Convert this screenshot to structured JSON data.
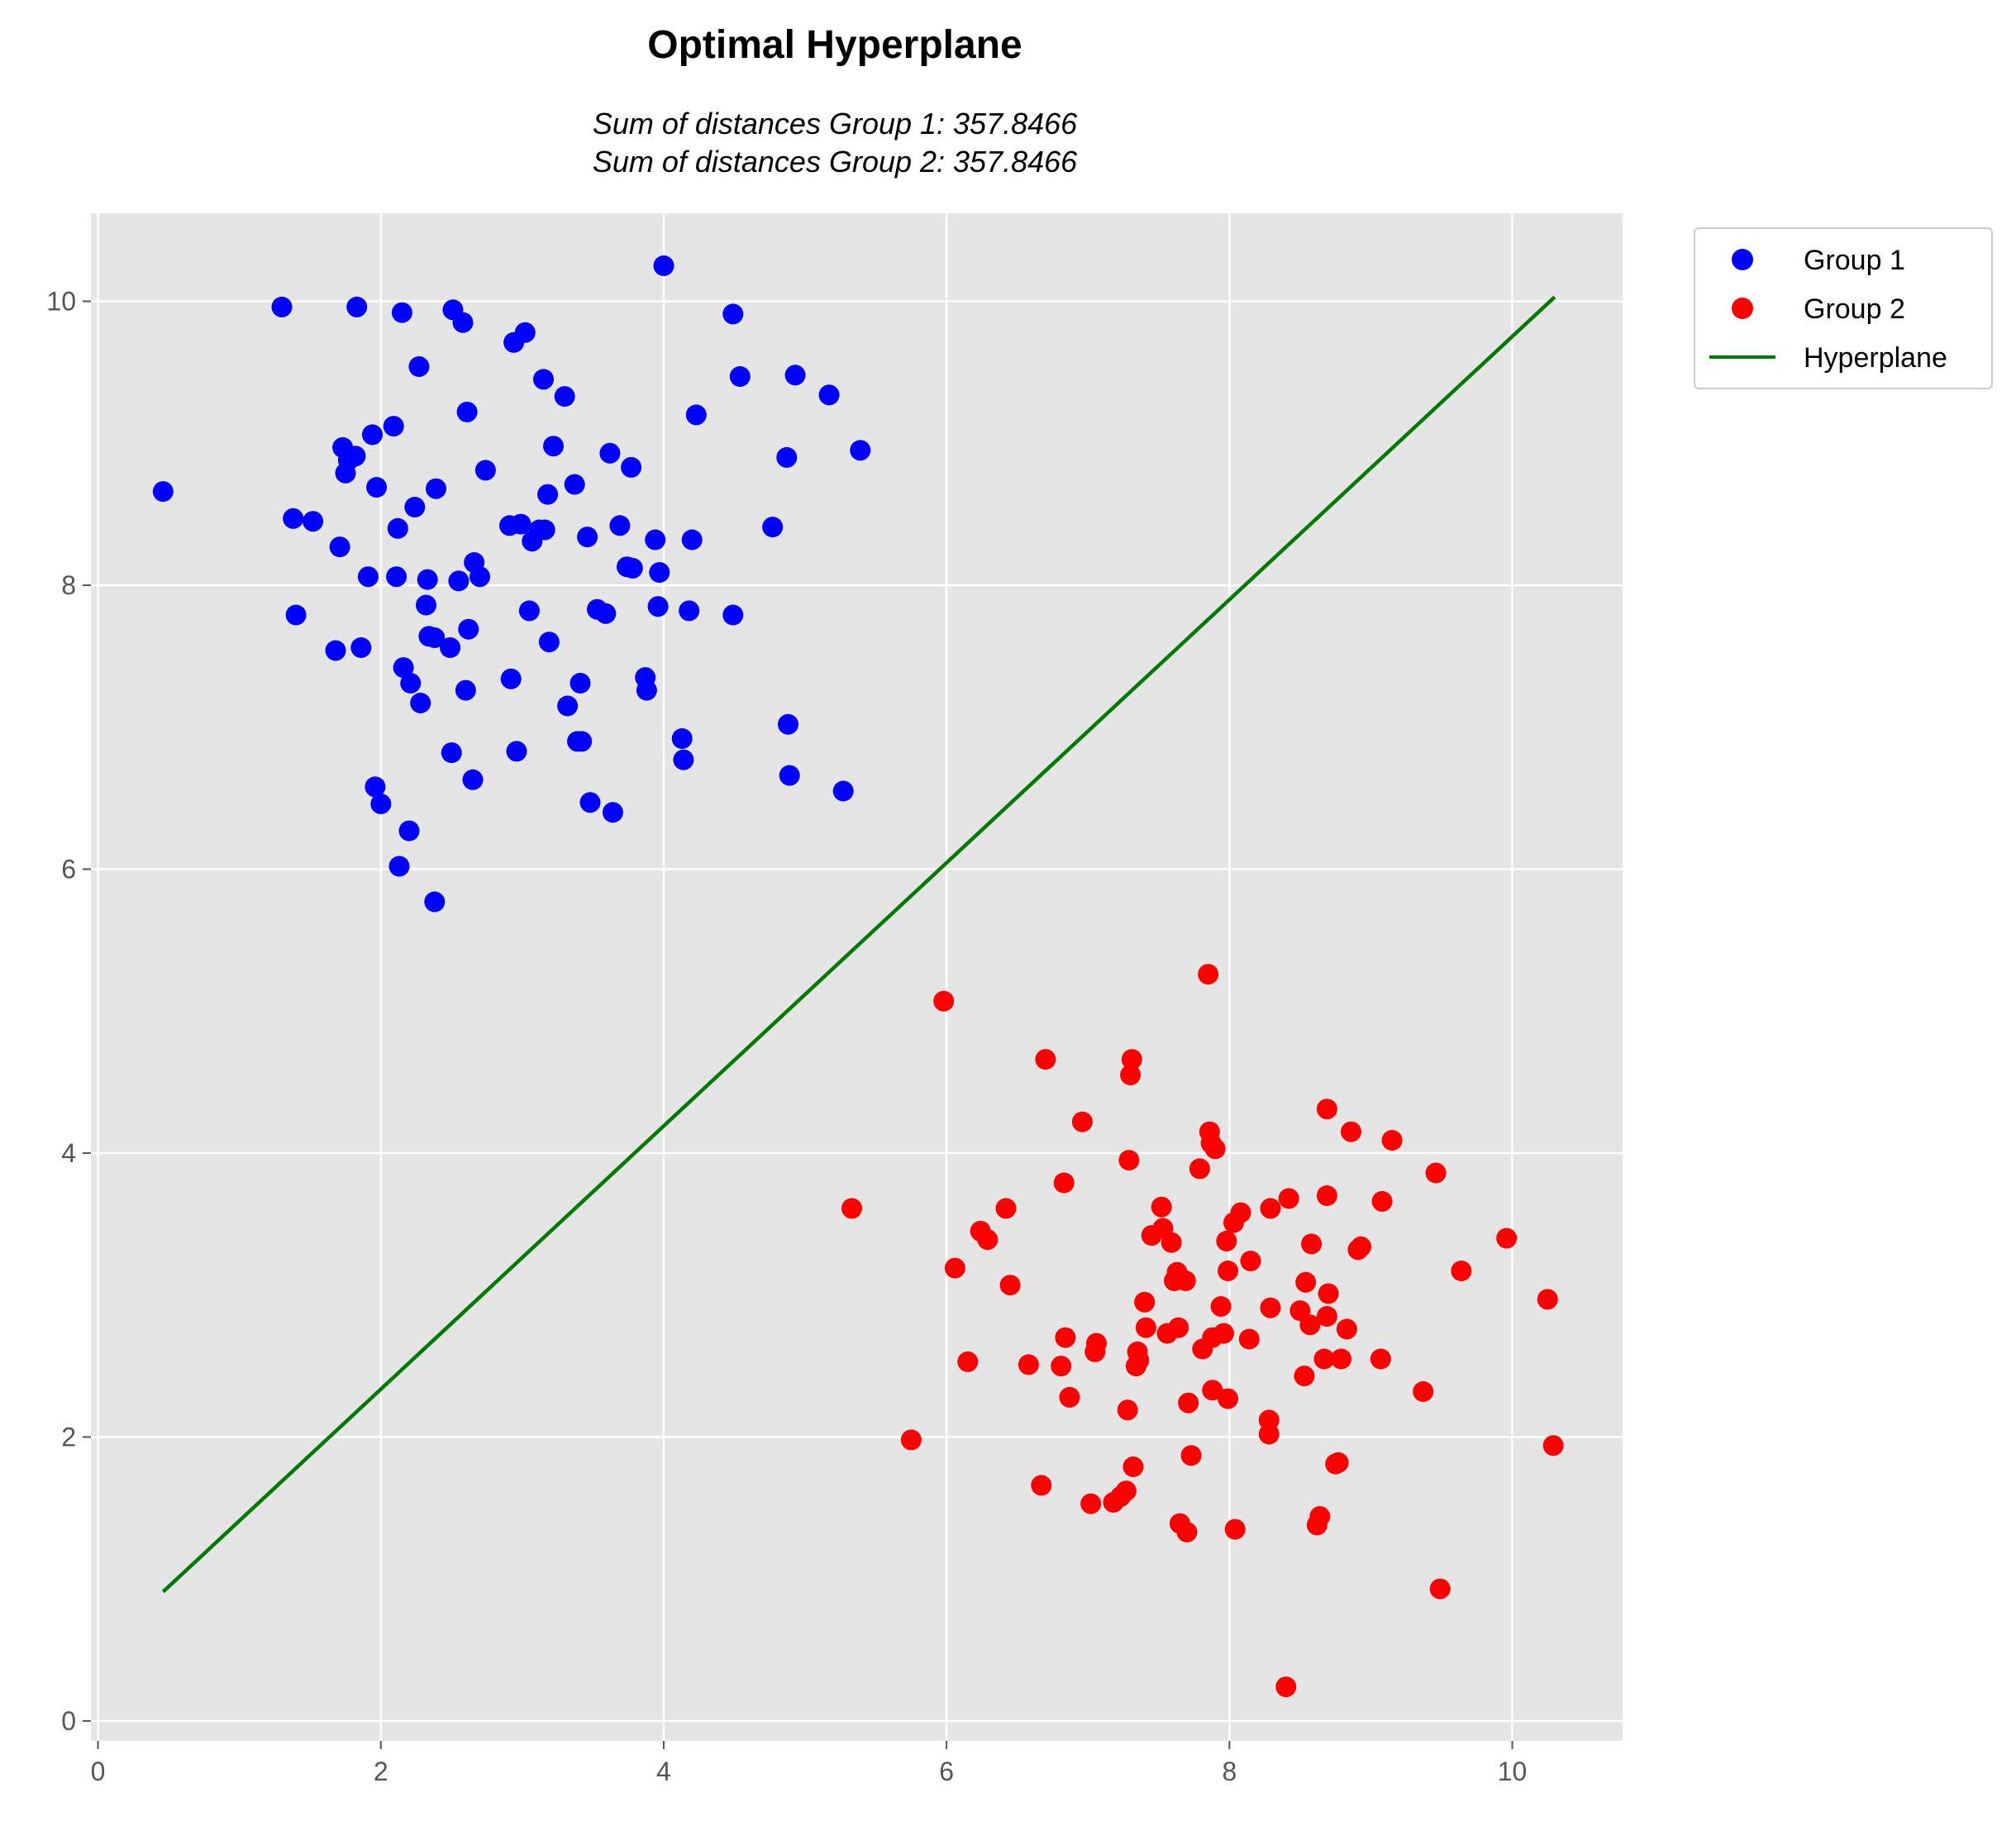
{
  "chart_data": {
    "type": "scatter",
    "title": "Optimal Hyperplane",
    "subtitle_lines": [
      "Sum of distances Group 1: 357.8466",
      "Sum of distances Group 2: 357.8466"
    ],
    "xlabel": "",
    "ylabel": "",
    "xlim": [
      -0.05,
      10.78
    ],
    "ylim": [
      -0.14,
      10.62
    ],
    "xticks": [
      0,
      2,
      4,
      6,
      8,
      10
    ],
    "yticks": [
      0,
      2,
      4,
      6,
      8,
      10
    ],
    "grid": true,
    "legend_position": "outside-top-right",
    "colors": {
      "background": "#e5e5e5",
      "grid": "#ffffff",
      "group1": "#0000ff",
      "group2": "#ff0000",
      "hyperplane": "#007a00"
    },
    "series": [
      {
        "name": "Group 1",
        "kind": "scatter",
        "color": "#0000ff",
        "points": [
          [
            0.46,
            8.66
          ],
          [
            1.3,
            9.96
          ],
          [
            1.38,
            8.47
          ],
          [
            1.4,
            7.79
          ],
          [
            1.52,
            8.45
          ],
          [
            1.68,
            7.54
          ],
          [
            1.71,
            8.27
          ],
          [
            1.73,
            8.97
          ],
          [
            1.75,
            8.79
          ],
          [
            1.77,
            8.88
          ],
          [
            1.82,
            8.91
          ],
          [
            1.83,
            9.96
          ],
          [
            1.86,
            7.56
          ],
          [
            1.91,
            8.06
          ],
          [
            1.94,
            9.06
          ],
          [
            1.96,
            6.58
          ],
          [
            1.97,
            8.69
          ],
          [
            2.0,
            6.46
          ],
          [
            2.09,
            9.12
          ],
          [
            2.11,
            8.06
          ],
          [
            2.12,
            8.4
          ],
          [
            2.13,
            6.02
          ],
          [
            2.15,
            9.92
          ],
          [
            2.16,
            7.42
          ],
          [
            2.2,
            6.27
          ],
          [
            2.21,
            7.31
          ],
          [
            2.24,
            8.55
          ],
          [
            2.27,
            9.54
          ],
          [
            2.28,
            7.17
          ],
          [
            2.32,
            7.86
          ],
          [
            2.33,
            8.04
          ],
          [
            2.34,
            7.64
          ],
          [
            2.38,
            7.63
          ],
          [
            2.38,
            5.77
          ],
          [
            2.39,
            8.68
          ],
          [
            2.49,
            7.56
          ],
          [
            2.5,
            6.82
          ],
          [
            2.51,
            9.94
          ],
          [
            2.55,
            8.03
          ],
          [
            2.58,
            9.85
          ],
          [
            2.6,
            7.26
          ],
          [
            2.61,
            9.22
          ],
          [
            2.62,
            7.69
          ],
          [
            2.65,
            6.63
          ],
          [
            2.66,
            8.16
          ],
          [
            2.7,
            8.06
          ],
          [
            2.74,
            8.81
          ],
          [
            2.91,
            8.42
          ],
          [
            2.92,
            7.34
          ],
          [
            2.94,
            9.71
          ],
          [
            2.96,
            6.83
          ],
          [
            2.99,
            8.43
          ],
          [
            3.02,
            9.78
          ],
          [
            3.05,
            7.82
          ],
          [
            3.07,
            8.31
          ],
          [
            3.12,
            8.39
          ],
          [
            3.15,
            9.45
          ],
          [
            3.16,
            8.39
          ],
          [
            3.18,
            8.64
          ],
          [
            3.19,
            7.6
          ],
          [
            3.22,
            8.98
          ],
          [
            3.3,
            9.33
          ],
          [
            3.32,
            7.15
          ],
          [
            3.37,
            8.71
          ],
          [
            3.39,
            6.9
          ],
          [
            3.41,
            7.31
          ],
          [
            3.42,
            6.9
          ],
          [
            3.46,
            8.34
          ],
          [
            3.48,
            6.47
          ],
          [
            3.53,
            7.83
          ],
          [
            3.59,
            7.8
          ],
          [
            3.62,
            8.93
          ],
          [
            3.64,
            6.4
          ],
          [
            3.69,
            8.42
          ],
          [
            3.74,
            8.13
          ],
          [
            3.77,
            8.83
          ],
          [
            3.78,
            8.12
          ],
          [
            3.87,
            7.35
          ],
          [
            3.88,
            7.26
          ],
          [
            3.94,
            8.32
          ],
          [
            3.96,
            7.85
          ],
          [
            3.97,
            8.09
          ],
          [
            4.0,
            10.25
          ],
          [
            4.13,
            6.92
          ],
          [
            4.14,
            6.77
          ],
          [
            4.18,
            7.82
          ],
          [
            4.2,
            8.32
          ],
          [
            4.23,
            9.2
          ],
          [
            4.49,
            9.91
          ],
          [
            4.49,
            7.79
          ],
          [
            4.54,
            9.47
          ],
          [
            4.77,
            8.41
          ],
          [
            4.87,
            8.9
          ],
          [
            4.88,
            7.02
          ],
          [
            4.89,
            6.66
          ],
          [
            4.93,
            9.48
          ],
          [
            5.17,
            9.34
          ],
          [
            5.27,
            6.55
          ],
          [
            5.39,
            8.95
          ]
        ]
      },
      {
        "name": "Group 2",
        "kind": "scatter",
        "color": "#ff0000",
        "points": [
          [
            5.33,
            3.61
          ],
          [
            5.75,
            1.98
          ],
          [
            5.98,
            5.07
          ],
          [
            6.06,
            3.19
          ],
          [
            6.15,
            2.53
          ],
          [
            6.24,
            3.45
          ],
          [
            6.29,
            3.39
          ],
          [
            6.42,
            3.61
          ],
          [
            6.45,
            3.07
          ],
          [
            6.58,
            2.51
          ],
          [
            6.67,
            1.66
          ],
          [
            6.7,
            4.66
          ],
          [
            6.81,
            2.5
          ],
          [
            6.83,
            3.79
          ],
          [
            6.84,
            2.7
          ],
          [
            6.87,
            2.28
          ],
          [
            6.96,
            4.22
          ],
          [
            7.02,
            1.53
          ],
          [
            7.05,
            2.6
          ],
          [
            7.06,
            2.66
          ],
          [
            7.18,
            1.54
          ],
          [
            7.23,
            1.58
          ],
          [
            7.27,
            1.62
          ],
          [
            7.28,
            2.19
          ],
          [
            7.29,
            3.95
          ],
          [
            7.3,
            4.55
          ],
          [
            7.31,
            4.66
          ],
          [
            7.32,
            1.79
          ],
          [
            7.34,
            2.5
          ],
          [
            7.35,
            2.6
          ],
          [
            7.36,
            2.54
          ],
          [
            7.4,
            2.95
          ],
          [
            7.41,
            2.77
          ],
          [
            7.45,
            3.42
          ],
          [
            7.52,
            3.62
          ],
          [
            7.53,
            3.47
          ],
          [
            7.56,
            2.73
          ],
          [
            7.59,
            3.37
          ],
          [
            7.61,
            3.1
          ],
          [
            7.63,
            3.16
          ],
          [
            7.64,
            2.77
          ],
          [
            7.65,
            1.39
          ],
          [
            7.69,
            3.1
          ],
          [
            7.7,
            1.33
          ],
          [
            7.71,
            2.24
          ],
          [
            7.73,
            1.87
          ],
          [
            7.79,
            3.89
          ],
          [
            7.81,
            2.62
          ],
          [
            7.85,
            5.26
          ],
          [
            7.86,
            4.15
          ],
          [
            7.87,
            4.07
          ],
          [
            7.88,
            2.33
          ],
          [
            7.88,
            2.7
          ],
          [
            7.9,
            4.03
          ],
          [
            7.94,
            2.92
          ],
          [
            7.96,
            2.73
          ],
          [
            7.98,
            3.38
          ],
          [
            7.99,
            3.17
          ],
          [
            7.99,
            2.27
          ],
          [
            8.03,
            3.51
          ],
          [
            8.04,
            1.35
          ],
          [
            8.08,
            3.58
          ],
          [
            8.14,
            2.69
          ],
          [
            8.15,
            3.24
          ],
          [
            8.28,
            2.02
          ],
          [
            8.28,
            2.12
          ],
          [
            8.29,
            2.91
          ],
          [
            8.29,
            3.61
          ],
          [
            8.4,
            0.24
          ],
          [
            8.42,
            3.68
          ],
          [
            8.5,
            2.89
          ],
          [
            8.53,
            2.43
          ],
          [
            8.54,
            3.09
          ],
          [
            8.57,
            2.79
          ],
          [
            8.58,
            3.36
          ],
          [
            8.62,
            1.38
          ],
          [
            8.64,
            1.44
          ],
          [
            8.67,
            2.55
          ],
          [
            8.69,
            4.31
          ],
          [
            8.69,
            3.7
          ],
          [
            8.69,
            2.85
          ],
          [
            8.7,
            3.01
          ],
          [
            8.75,
            1.81
          ],
          [
            8.77,
            1.82
          ],
          [
            8.79,
            2.55
          ],
          [
            8.83,
            2.76
          ],
          [
            8.86,
            4.15
          ],
          [
            8.91,
            3.32
          ],
          [
            8.93,
            3.34
          ],
          [
            9.07,
            2.55
          ],
          [
            9.08,
            3.66
          ],
          [
            9.15,
            4.09
          ],
          [
            9.37,
            2.32
          ],
          [
            9.46,
            3.86
          ],
          [
            9.49,
            0.93
          ],
          [
            9.64,
            3.17
          ],
          [
            9.96,
            3.4
          ],
          [
            10.25,
            2.97
          ],
          [
            10.29,
            1.94
          ]
        ]
      },
      {
        "name": "Hyperplane",
        "kind": "line",
        "color": "#007a00",
        "points": [
          [
            0.46,
            0.91
          ],
          [
            10.3,
            10.03
          ]
        ]
      }
    ]
  }
}
